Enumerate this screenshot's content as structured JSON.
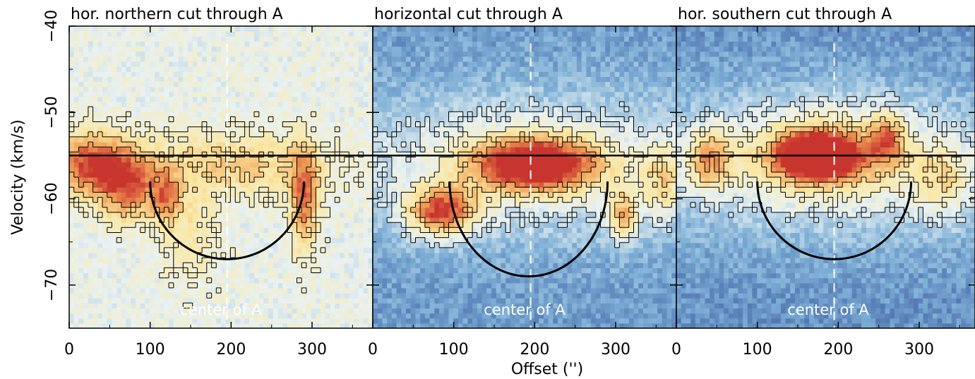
{
  "figure": {
    "xlabel": "Offset ('')",
    "ylabel": "Velocity (km/s)"
  },
  "chart_data": [
    {
      "type": "heatmap",
      "title": "hor. northern cut through A",
      "annotation": "center of A",
      "xlim": [
        0,
        375
      ],
      "ylim": [
        -75,
        -40
      ],
      "x_ticks": [
        0,
        100,
        200,
        300
      ],
      "y_ticks": [
        -70,
        -60,
        -50,
        -40
      ],
      "hline_velocity": -55,
      "center_offset": 195,
      "arc": {
        "x_start": 100,
        "x_end": 290,
        "v_top": -58,
        "v_bottom": -67
      },
      "peak_velocity": -57,
      "colormap": [
        "#3f5fa3",
        "#7fb0d6",
        "#e9f2f2",
        "#fbe7a1",
        "#f1a057",
        "#c8352e"
      ],
      "background_level": 0.42,
      "emission": [
        {
          "x": 30,
          "v": -56,
          "sx": 35,
          "sv": 2.5,
          "a": 0.55
        },
        {
          "x": 75,
          "v": -59,
          "sx": 25,
          "sv": 2.5,
          "a": 0.4
        },
        {
          "x": 120,
          "v": -60,
          "sx": 12,
          "sv": 2,
          "a": 0.35
        },
        {
          "x": 200,
          "v": -56,
          "sx": 90,
          "sv": 2.5,
          "a": 0.25
        },
        {
          "x": 290,
          "v": -60,
          "sx": 12,
          "sv": 4,
          "a": 0.45
        },
        {
          "x": 150,
          "v": -64,
          "sx": 25,
          "sv": 4,
          "a": 0.15
        }
      ]
    },
    {
      "type": "heatmap",
      "title": "horizontal cut through A",
      "annotation": "center of A",
      "xlim": [
        0,
        375
      ],
      "ylim": [
        -75,
        -40
      ],
      "x_ticks": [
        0,
        100,
        200,
        300
      ],
      "y_ticks": [
        -70,
        -60,
        -50,
        -40
      ],
      "hline_velocity": -55,
      "center_offset": 195,
      "arc": {
        "x_start": 95,
        "x_end": 290,
        "v_top": -58,
        "v_bottom": -69
      },
      "peak_velocity": -56,
      "colormap": [
        "#3f5fa3",
        "#7fb0d6",
        "#e9f2f2",
        "#fbe7a1",
        "#f1a057",
        "#c8352e"
      ],
      "background_level": 0.15,
      "emission": [
        {
          "x": 200,
          "v": -56,
          "sx": 55,
          "sv": 2.2,
          "a": 0.85
        },
        {
          "x": 85,
          "v": -61.5,
          "sx": 30,
          "sv": 2,
          "a": 0.7
        },
        {
          "x": 310,
          "v": -62,
          "sx": 12,
          "sv": 2,
          "a": 0.45
        },
        {
          "x": 200,
          "v": -56,
          "sx": 200,
          "sv": 6,
          "a": 0.3
        },
        {
          "x": 360,
          "v": -58,
          "sx": 20,
          "sv": 3,
          "a": 0.3
        }
      ]
    },
    {
      "type": "heatmap",
      "title": "hor. southern cut through A",
      "annotation": "center of A",
      "xlim": [
        0,
        375
      ],
      "ylim": [
        -75,
        -40
      ],
      "x_ticks": [
        0,
        100,
        200,
        300
      ],
      "y_ticks": [
        -70,
        -60,
        -50,
        -40
      ],
      "hline_velocity": -55,
      "center_offset": 195,
      "arc": {
        "x_start": 100,
        "x_end": 290,
        "v_top": -58,
        "v_bottom": -67
      },
      "peak_velocity": -55,
      "colormap": [
        "#3f5fa3",
        "#7fb0d6",
        "#e9f2f2",
        "#fbe7a1",
        "#f1a057",
        "#c8352e"
      ],
      "background_level": 0.12,
      "emission": [
        {
          "x": 175,
          "v": -55,
          "sx": 30,
          "sv": 1.6,
          "a": 1.0
        },
        {
          "x": 185,
          "v": -55,
          "sx": 75,
          "sv": 3.5,
          "a": 0.45
        },
        {
          "x": 40,
          "v": -55.5,
          "sx": 20,
          "sv": 2.5,
          "a": 0.45
        },
        {
          "x": 260,
          "v": -53,
          "sx": 14,
          "sv": 2,
          "a": 0.4
        },
        {
          "x": 330,
          "v": -58,
          "sx": 25,
          "sv": 3,
          "a": 0.28
        },
        {
          "x": 190,
          "v": -56,
          "sx": 220,
          "sv": 7,
          "a": 0.25
        }
      ]
    }
  ]
}
